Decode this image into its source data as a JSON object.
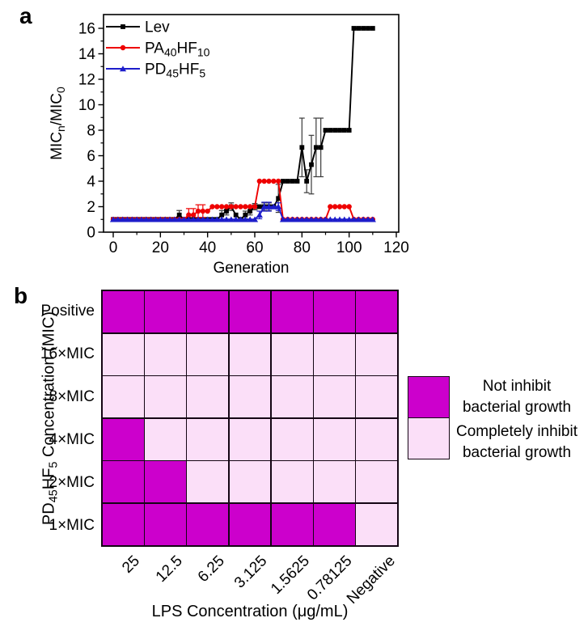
{
  "figure": {
    "panel_a_letter": "a",
    "panel_b_letter": "b"
  },
  "chart_data": [
    {
      "type": "line",
      "xlabel": "Generation",
      "ylabel_segments": [
        {
          "t": "MIC"
        },
        {
          "t": "n",
          "sub": true
        },
        {
          "t": "/MIC"
        },
        {
          "t": "0",
          "sub": true
        }
      ],
      "xlim": [
        -4,
        121
      ],
      "ylim": [
        0,
        17
      ],
      "xticks": [
        0,
        20,
        40,
        60,
        80,
        100,
        120
      ],
      "xminor": [
        10,
        30,
        50,
        70,
        90,
        110
      ],
      "yticks": [
        0,
        2,
        4,
        6,
        8,
        10,
        12,
        14,
        16
      ],
      "yminor": [
        1,
        3,
        5,
        7,
        9,
        11,
        13,
        15
      ],
      "legend_position": "top-left-inside",
      "grid": "off",
      "x": [
        0,
        2,
        4,
        6,
        8,
        10,
        12,
        14,
        16,
        18,
        20,
        22,
        24,
        26,
        28,
        30,
        32,
        34,
        36,
        38,
        40,
        42,
        44,
        46,
        48,
        50,
        52,
        54,
        56,
        58,
        60,
        62,
        64,
        66,
        68,
        70,
        72,
        74,
        76,
        78,
        80,
        82,
        84,
        86,
        88,
        90,
        92,
        94,
        96,
        98,
        100,
        102,
        104,
        106,
        108,
        110
      ],
      "series": [
        {
          "name_segments": [
            {
              "t": "Lev"
            }
          ],
          "color": "#000000",
          "err_color": "#3a3a3a",
          "marker": "square",
          "values": [
            1,
            1,
            1,
            1,
            1,
            1,
            1,
            1,
            1,
            1,
            1,
            1,
            1,
            1,
            1.35,
            1,
            1,
            1,
            1,
            1,
            1,
            1,
            1,
            1.35,
            1.65,
            2,
            1.35,
            1,
            1.35,
            1.65,
            2,
            2,
            2,
            2,
            2,
            2.65,
            4,
            4,
            4,
            4,
            6.65,
            4,
            5.3,
            6.65,
            6.65,
            8,
            8,
            8,
            8,
            8,
            8,
            16,
            16,
            16,
            16,
            16
          ],
          "err": [
            0,
            0,
            0,
            0,
            0,
            0,
            0,
            0,
            0,
            0,
            0,
            0,
            0,
            0,
            0.35,
            0,
            0,
            0,
            0,
            0,
            0,
            0,
            0,
            0.35,
            0.3,
            0.3,
            0,
            0,
            0.3,
            0.3,
            0.25,
            0,
            0.3,
            0.3,
            0,
            1.1,
            0,
            0,
            0,
            0,
            2.3,
            0.9,
            2.3,
            2.3,
            2.3,
            0,
            0,
            0,
            0,
            0,
            0,
            0,
            0,
            0,
            0,
            0
          ]
        },
        {
          "name_segments": [
            {
              "t": "PA"
            },
            {
              "t": "40",
              "sub": true
            },
            {
              "t": "HF"
            },
            {
              "t": "10",
              "sub": true
            }
          ],
          "color": "#ee0000",
          "err_color": "#ee0000",
          "marker": "circle",
          "values": [
            1,
            1,
            1,
            1,
            1,
            1,
            1,
            1,
            1,
            1,
            1,
            1,
            1,
            1,
            1,
            1,
            1.35,
            1.35,
            1.65,
            1.65,
            1.65,
            2,
            2,
            2,
            2,
            2,
            2,
            2,
            2,
            2,
            2,
            4,
            4,
            4,
            4,
            4,
            1,
            1,
            1,
            1,
            1,
            1,
            1,
            1,
            1,
            1,
            2,
            2,
            2,
            2,
            2,
            1,
            1,
            1,
            1,
            1
          ],
          "err": [
            0,
            0,
            0,
            0,
            0,
            0,
            0,
            0,
            0,
            0,
            0,
            0,
            0,
            0,
            0,
            0,
            0.5,
            0.5,
            0.5,
            0.5,
            0,
            0,
            0,
            0,
            0,
            0,
            0,
            0,
            0,
            0,
            0,
            0,
            0,
            0,
            0,
            0,
            0,
            0,
            0,
            0,
            0,
            0,
            0,
            0,
            0,
            0,
            0,
            0,
            0,
            0,
            0,
            0,
            0,
            0,
            0,
            0
          ]
        },
        {
          "name_segments": [
            {
              "t": "PD"
            },
            {
              "t": "45",
              "sub": true
            },
            {
              "t": "HF"
            },
            {
              "t": "5",
              "sub": true
            }
          ],
          "color": "#1d1dcb",
          "err_color": "#1d1dcb",
          "marker": "triangle",
          "values": [
            1,
            1,
            1,
            1,
            1,
            1,
            1,
            1,
            1,
            1,
            1,
            1,
            1,
            1,
            1,
            1,
            1,
            1,
            1,
            1,
            1,
            1,
            1,
            1,
            1,
            1,
            1,
            1,
            1,
            1,
            1,
            1.35,
            2,
            2,
            2,
            2,
            1,
            1,
            1,
            1,
            1,
            1,
            1,
            1,
            1,
            1,
            1,
            1,
            1,
            1,
            1,
            1,
            1,
            1,
            1,
            1
          ],
          "err": [
            0,
            0,
            0,
            0,
            0,
            0,
            0,
            0,
            0,
            0,
            0,
            0,
            0,
            0,
            0,
            0,
            0,
            0,
            0,
            0,
            0,
            0,
            0,
            0,
            0,
            0,
            0,
            0,
            0,
            0,
            0,
            0.3,
            0.35,
            0.35,
            0,
            0.3,
            0,
            0,
            0,
            0,
            0,
            0,
            0,
            0,
            0,
            0,
            0,
            0,
            0,
            0,
            0,
            0,
            0,
            0,
            0,
            0
          ]
        }
      ]
    },
    {
      "type": "heatmap",
      "rows": [
        "Positive",
        "16×MIC",
        "8×MIC",
        "4×MIC",
        "2×MIC",
        "1×MIC"
      ],
      "cols": [
        "25",
        "12.5",
        "6.25",
        "3.125",
        "1.5625",
        "0.78125",
        "Negative"
      ],
      "grid": [
        [
          1,
          1,
          1,
          1,
          1,
          1,
          1
        ],
        [
          0,
          0,
          0,
          0,
          0,
          0,
          0
        ],
        [
          0,
          0,
          0,
          0,
          0,
          0,
          0
        ],
        [
          1,
          0,
          0,
          0,
          0,
          0,
          0
        ],
        [
          1,
          1,
          0,
          0,
          0,
          0,
          0
        ],
        [
          1,
          1,
          1,
          1,
          1,
          1,
          0
        ]
      ],
      "colors": {
        "on": "#cc00cc",
        "off": "#fbdff8"
      },
      "legend": [
        {
          "key": "on",
          "lines": [
            "Not inhibit",
            "bacterial growth"
          ]
        },
        {
          "key": "off",
          "lines": [
            "Completely inhibit",
            "bacterial growth"
          ]
        }
      ],
      "xlabel": "LPS Concentration (μg/mL)",
      "ylabel_segments": [
        {
          "t": "PD"
        },
        {
          "t": "45",
          "sub": true
        },
        {
          "t": "HF"
        },
        {
          "t": "5",
          "sub": true
        },
        {
          "t": " Concentration (MIC)"
        }
      ]
    }
  ]
}
